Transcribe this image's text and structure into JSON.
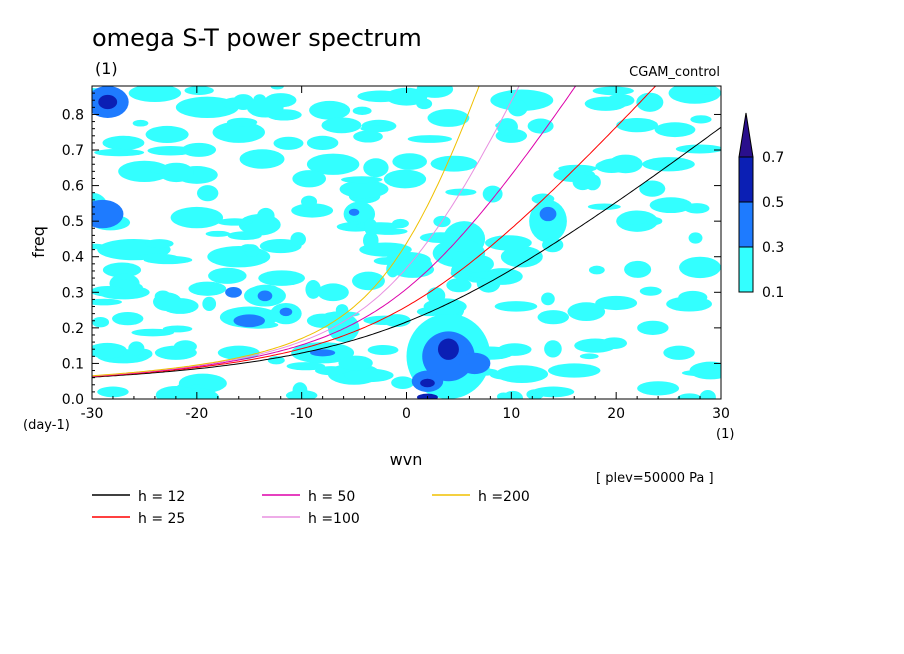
{
  "chart_data": {
    "type": "heatmap",
    "title": "omega S-T power spectrum",
    "subtitle_left": "(1)",
    "subtitle_right": "CGAM_control",
    "xlabel": "wvn",
    "ylabel": "freq",
    "x_unit": "(1)",
    "y_unit": "(day-1)",
    "annotation": "[ plev=50000 Pa ]",
    "xlim": [
      -30,
      30
    ],
    "ylim": [
      0,
      0.88
    ],
    "x_ticks": [
      "-30",
      "-20",
      "-10",
      "0",
      "10",
      "20",
      "30"
    ],
    "y_ticks": [
      "0.0",
      "0.1",
      "0.2",
      "0.3",
      "0.4",
      "0.5",
      "0.6",
      "0.7",
      "0.8"
    ],
    "grid": false,
    "colorbar": {
      "levels": [
        "0.1",
        "0.3",
        "0.5",
        "0.7"
      ],
      "colors": [
        "#33ffff",
        "#1e7bff",
        "#0b1fb4",
        "#2a0f8c"
      ],
      "extend": "max"
    },
    "contour_fill": {
      "blobs": [
        [
          -28.5,
          0.835,
          2.0,
          0.045,
          1
        ],
        [
          -28.5,
          0.835,
          0.9,
          0.02,
          2
        ],
        [
          -24,
          0.86,
          2.5,
          0.025,
          0
        ],
        [
          -19,
          0.82,
          3.0,
          0.03,
          0
        ],
        [
          -12,
          0.84,
          1.5,
          0.02,
          0
        ],
        [
          0,
          0.85,
          2.0,
          0.025,
          0
        ],
        [
          11,
          0.84,
          3.0,
          0.03,
          0
        ],
        [
          19,
          0.83,
          2.0,
          0.02,
          0
        ],
        [
          27.5,
          0.86,
          2.5,
          0.03,
          0
        ],
        [
          -27,
          0.72,
          2.0,
          0.02,
          0
        ],
        [
          -16,
          0.75,
          2.5,
          0.03,
          0
        ],
        [
          -8,
          0.72,
          1.5,
          0.02,
          0
        ],
        [
          4,
          0.79,
          2.0,
          0.025,
          0
        ],
        [
          10,
          0.74,
          1.5,
          0.02,
          0
        ],
        [
          22,
          0.77,
          2.0,
          0.02,
          0
        ],
        [
          -25,
          0.64,
          2.5,
          0.03,
          0
        ],
        [
          -20,
          0.63,
          2.0,
          0.025,
          0
        ],
        [
          -7,
          0.66,
          2.5,
          0.03,
          0
        ],
        [
          -4,
          0.57,
          1.5,
          0.02,
          0
        ],
        [
          16,
          0.63,
          2.0,
          0.02,
          0
        ],
        [
          25,
          0.66,
          2.5,
          0.02,
          0
        ],
        [
          -30,
          0.54,
          1.5,
          0.04,
          0
        ],
        [
          -29,
          0.52,
          2.0,
          0.04,
          1
        ],
        [
          -20,
          0.51,
          2.5,
          0.03,
          0
        ],
        [
          -14,
          0.49,
          2.0,
          0.03,
          0
        ],
        [
          -9,
          0.53,
          2.0,
          0.02,
          0
        ],
        [
          -4.5,
          0.52,
          1.5,
          0.035,
          0
        ],
        [
          -5,
          0.525,
          0.5,
          0.01,
          1
        ],
        [
          5.5,
          0.45,
          2.0,
          0.05,
          0
        ],
        [
          13.5,
          0.5,
          1.8,
          0.06,
          0
        ],
        [
          13.5,
          0.52,
          0.8,
          0.02,
          1
        ],
        [
          22,
          0.5,
          2.0,
          0.03,
          0
        ],
        [
          -26,
          0.42,
          3.5,
          0.03,
          0
        ],
        [
          -16,
          0.4,
          3.0,
          0.03,
          0
        ],
        [
          -12,
          0.43,
          2.0,
          0.02,
          0
        ],
        [
          -2,
          0.42,
          2.5,
          0.02,
          0
        ],
        [
          5,
          0.41,
          2.5,
          0.04,
          0
        ],
        [
          11,
          0.4,
          2.0,
          0.03,
          0
        ],
        [
          28,
          0.37,
          2.0,
          0.03,
          0
        ],
        [
          -27,
          0.3,
          2.5,
          0.02,
          0
        ],
        [
          -19,
          0.31,
          1.8,
          0.02,
          0
        ],
        [
          -16.5,
          0.3,
          0.8,
          0.015,
          1
        ],
        [
          -13.5,
          0.29,
          2.0,
          0.03,
          0
        ],
        [
          -13.5,
          0.29,
          0.7,
          0.015,
          1
        ],
        [
          -7,
          0.3,
          1.5,
          0.025,
          0
        ],
        [
          5,
          0.32,
          1.2,
          0.02,
          0
        ],
        [
          20,
          0.27,
          2.0,
          0.02,
          0
        ],
        [
          -15,
          0.23,
          2.8,
          0.03,
          0
        ],
        [
          -15,
          0.22,
          1.5,
          0.018,
          1
        ],
        [
          -11.5,
          0.24,
          1.5,
          0.03,
          0
        ],
        [
          -11.5,
          0.245,
          0.6,
          0.012,
          1
        ],
        [
          -8,
          0.22,
          1.5,
          0.02,
          0
        ],
        [
          -6,
          0.2,
          1.5,
          0.04,
          0
        ],
        [
          4,
          0.25,
          1.5,
          0.03,
          0
        ],
        [
          14,
          0.23,
          1.5,
          0.02,
          0
        ],
        [
          23.5,
          0.2,
          1.5,
          0.02,
          0
        ],
        [
          -27,
          0.12,
          2.5,
          0.02,
          0
        ],
        [
          -22,
          0.13,
          2.0,
          0.02,
          0
        ],
        [
          -16,
          0.13,
          2.0,
          0.02,
          0
        ],
        [
          -8,
          0.13,
          3.0,
          0.03,
          0
        ],
        [
          -8,
          0.13,
          1.2,
          0.01,
          1
        ],
        [
          -5,
          0.07,
          2.5,
          0.03,
          0
        ],
        [
          4,
          0.12,
          4.0,
          0.12,
          0
        ],
        [
          4,
          0.12,
          2.5,
          0.07,
          1
        ],
        [
          4,
          0.14,
          1.0,
          0.03,
          2
        ],
        [
          2,
          0.05,
          1.5,
          0.03,
          1
        ],
        [
          2,
          0.045,
          0.7,
          0.012,
          2
        ],
        [
          6.5,
          0.1,
          1.5,
          0.03,
          1
        ],
        [
          2,
          0.005,
          1.0,
          0.01,
          2
        ],
        [
          11,
          0.07,
          2.5,
          0.025,
          0
        ],
        [
          16,
          0.08,
          2.5,
          0.02,
          0
        ],
        [
          18,
          0.15,
          2.0,
          0.02,
          0
        ],
        [
          26,
          0.13,
          1.5,
          0.02,
          0
        ],
        [
          29,
          0.08,
          2.0,
          0.025,
          0
        ],
        [
          -28,
          0.02,
          1.5,
          0.015,
          0
        ],
        [
          -20,
          0.03,
          2.0,
          0.02,
          0
        ],
        [
          -10,
          0.01,
          1.5,
          0.015,
          0
        ],
        [
          14,
          0.02,
          2.0,
          0.015,
          0
        ],
        [
          24,
          0.03,
          2.0,
          0.02,
          0
        ]
      ],
      "noise_density": 170,
      "noise_seed": 7
    },
    "series": [
      {
        "name": "h = 12",
        "h": 12,
        "color": "#000000"
      },
      {
        "name": "h = 25",
        "h": 25,
        "color": "#ff0000"
      },
      {
        "name": "h = 50",
        "h": 50,
        "color": "#dd00aa"
      },
      {
        "name": "h =100",
        "h": 100,
        "color": "#e890e0"
      },
      {
        "name": "h =200",
        "h": 200,
        "color": "#f0c000"
      }
    ]
  }
}
